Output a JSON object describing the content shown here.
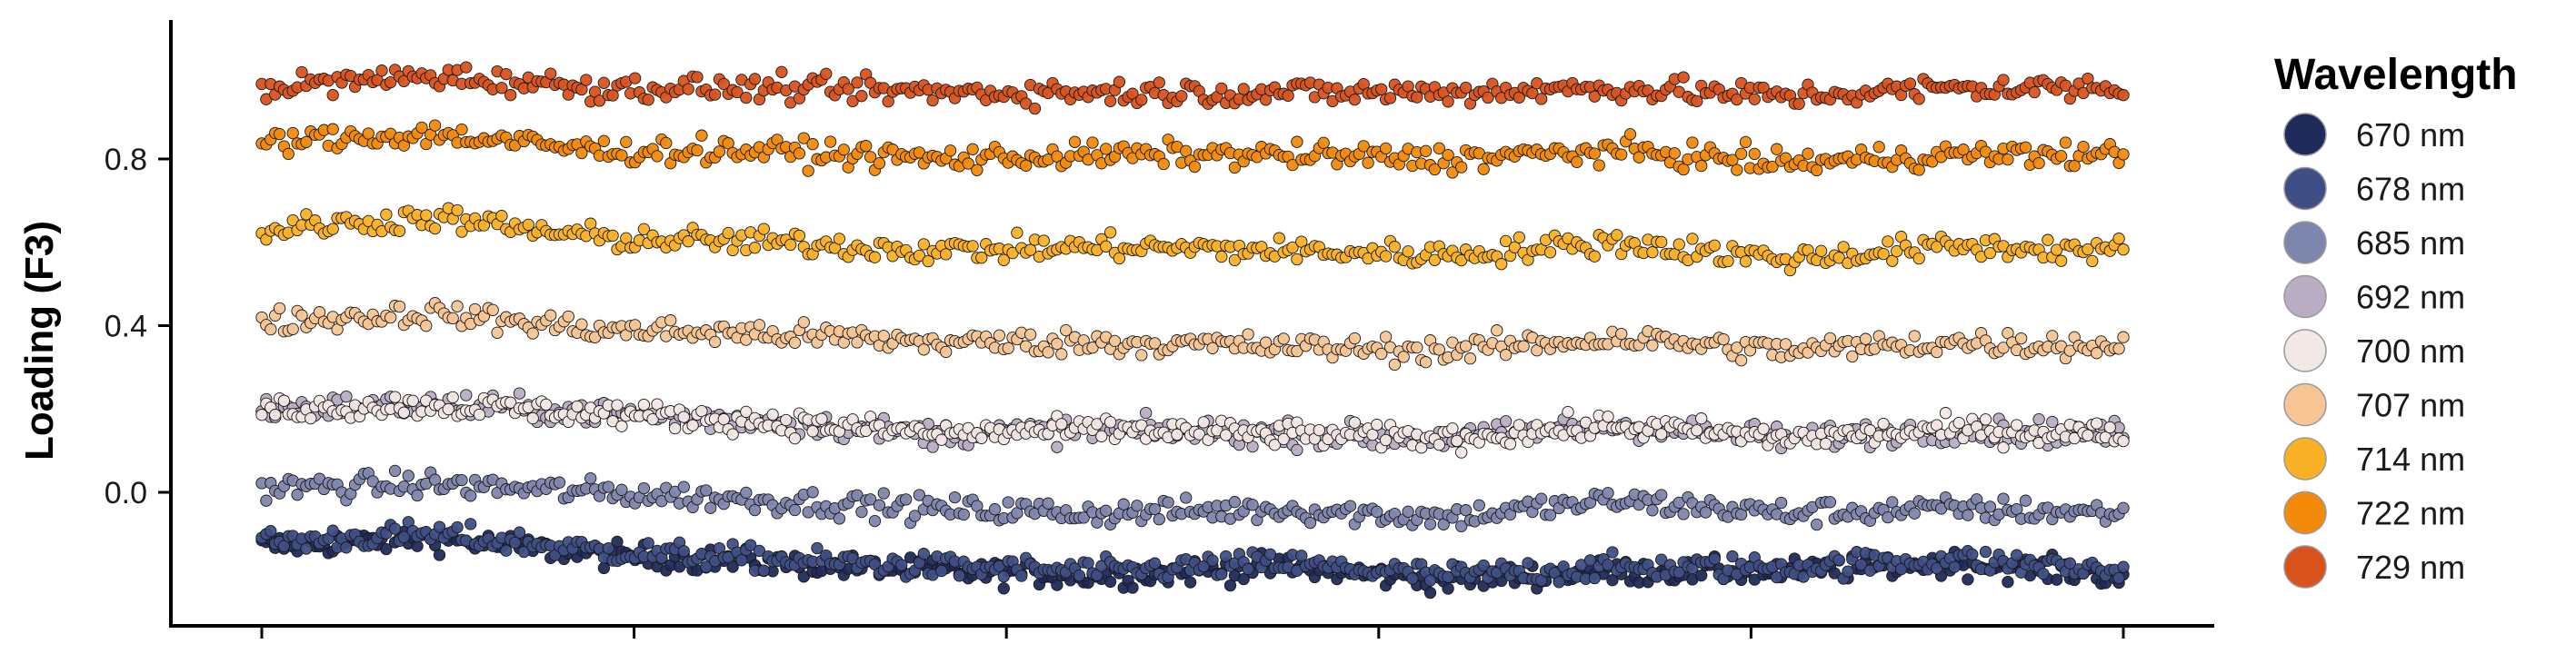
{
  "chart_data": {
    "type": "scatter",
    "title": "",
    "xlabel": "",
    "ylabel": "Loading (F3)",
    "ylim": [
      -0.27,
      1.14
    ],
    "yticks": [
      0.0,
      0.4,
      0.8
    ],
    "ytick_labels": [
      "0.0",
      "0.4",
      "0.8"
    ],
    "xlim": [
      0,
      100
    ],
    "xticks": [
      0,
      20,
      40,
      60,
      80,
      100
    ],
    "xtick_labels": [],
    "grid": false,
    "legend": {
      "title": "Wavelength",
      "position": "right"
    },
    "point_outline": "#1a1a1a",
    "series": [
      {
        "name": "670 nm",
        "color": "#1f2a5a",
        "values": [
          -0.13,
          -0.11,
          -0.15,
          -0.17,
          -0.19,
          -0.2,
          -0.18,
          -0.21,
          -0.19,
          -0.19,
          -0.17,
          -0.2
        ]
      },
      {
        "name": "678 nm",
        "color": "#3f4f86",
        "values": [
          -0.12,
          -0.1,
          -0.14,
          -0.16,
          -0.18,
          -0.19,
          -0.17,
          -0.2,
          -0.18,
          -0.18,
          -0.16,
          -0.19
        ]
      },
      {
        "name": "685 nm",
        "color": "#7f86ad",
        "values": [
          0.01,
          0.02,
          0.0,
          -0.02,
          -0.04,
          -0.05,
          -0.04,
          -0.06,
          -0.02,
          -0.05,
          -0.04,
          -0.05
        ]
      },
      {
        "name": "692 nm",
        "color": "#b8adc3",
        "values": [
          0.2,
          0.21,
          0.19,
          0.17,
          0.14,
          0.15,
          0.14,
          0.13,
          0.16,
          0.13,
          0.15,
          0.14
        ]
      },
      {
        "name": "700 nm",
        "color": "#f3e8e6",
        "values": [
          0.2,
          0.21,
          0.19,
          0.17,
          0.14,
          0.15,
          0.14,
          0.13,
          0.16,
          0.13,
          0.15,
          0.14
        ]
      },
      {
        "name": "707 nm",
        "color": "#f7c593",
        "values": [
          0.41,
          0.43,
          0.39,
          0.38,
          0.36,
          0.36,
          0.35,
          0.34,
          0.37,
          0.34,
          0.36,
          0.35
        ]
      },
      {
        "name": "714 nm",
        "color": "#fbb125",
        "values": [
          0.63,
          0.66,
          0.61,
          0.6,
          0.58,
          0.59,
          0.58,
          0.57,
          0.6,
          0.56,
          0.59,
          0.58
        ]
      },
      {
        "name": "722 nm",
        "color": "#f48a0a",
        "values": [
          0.84,
          0.86,
          0.82,
          0.82,
          0.8,
          0.81,
          0.81,
          0.8,
          0.82,
          0.79,
          0.81,
          0.81
        ]
      },
      {
        "name": "729 nm",
        "color": "#d9531e",
        "values": [
          0.97,
          1.0,
          0.97,
          0.97,
          0.96,
          0.96,
          0.96,
          0.96,
          0.97,
          0.95,
          0.97,
          0.97
        ]
      }
    ]
  }
}
